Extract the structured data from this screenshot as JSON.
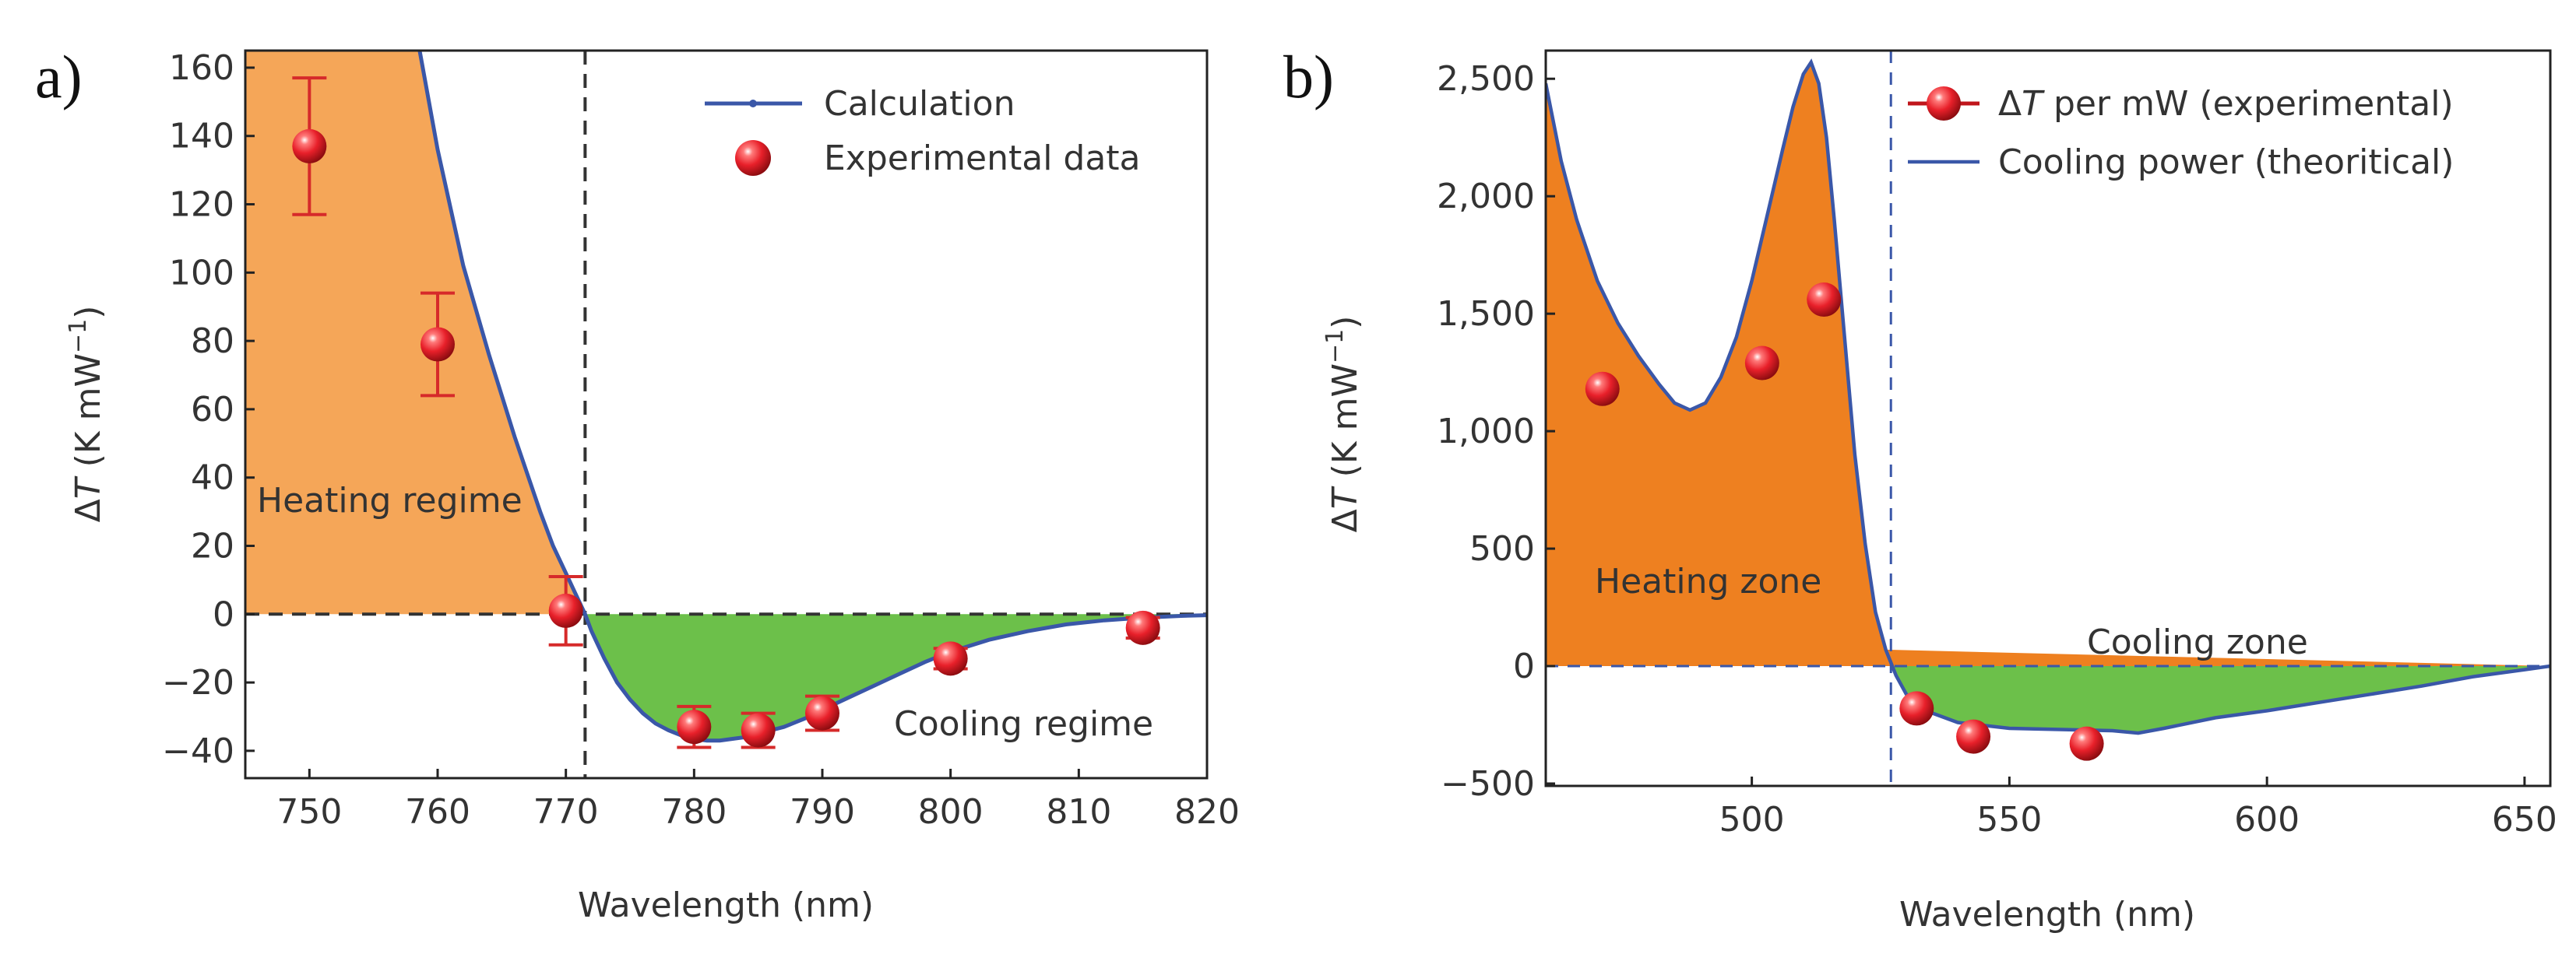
{
  "chart_data": [
    {
      "type": "line",
      "panel_label": "a)",
      "xlabel": "Wavelength (nm)",
      "ylabel_prefix": "Δ",
      "ylabel_var": "T",
      "ylabel_suffix": " (K mW",
      "ylabel_exp": "−1",
      "ylabel_close": ")",
      "xlim": [
        745,
        820
      ],
      "ylim": [
        -48,
        165
      ],
      "xticks": [
        750,
        760,
        770,
        780,
        790,
        800,
        810,
        820
      ],
      "yticks": [
        -40,
        -20,
        0,
        20,
        40,
        60,
        80,
        100,
        120,
        140,
        160
      ],
      "tick_labels_x": [
        "750",
        "760",
        "770",
        "780",
        "790",
        "800",
        "810",
        "820"
      ],
      "tick_labels_y": [
        "−40",
        "−20",
        "0",
        "20",
        "40",
        "60",
        "80",
        "100",
        "120",
        "140",
        "160"
      ],
      "legend_position": "top-right",
      "legend": [
        "Calculation",
        "Experimental data"
      ],
      "zero_crossing_x": 771.5,
      "annotations": [
        "Heating regime",
        "Cooling regime"
      ],
      "series": [
        {
          "name": "Calculation",
          "x": [
            758.6,
            760,
            762,
            764,
            766,
            768,
            769,
            770,
            771,
            771.5,
            772,
            773,
            774,
            775,
            776,
            777,
            778,
            779,
            780,
            781,
            782,
            783,
            784,
            785,
            786,
            787,
            788,
            789,
            790,
            792,
            794,
            796,
            798,
            800,
            803,
            806,
            809,
            812,
            815,
            818,
            820
          ],
          "y": [
            165,
            136,
            102,
            76,
            52,
            30,
            20,
            12,
            4,
            0,
            -5,
            -13,
            -20,
            -25,
            -29,
            -32,
            -34,
            -35.5,
            -36.5,
            -37,
            -37,
            -36.5,
            -36,
            -35,
            -34,
            -33,
            -31.5,
            -30,
            -28,
            -24.5,
            -21,
            -17.5,
            -14,
            -11,
            -7.5,
            -5,
            -3,
            -1.8,
            -1,
            -0.5,
            -0.3
          ]
        },
        {
          "name": "Experimental data",
          "x": [
            750,
            760,
            770,
            780,
            785,
            790,
            800,
            815
          ],
          "y": [
            137,
            79,
            1,
            -33,
            -34,
            -29,
            -13,
            -4
          ],
          "err": [
            20,
            15,
            10,
            6,
            5,
            5,
            3,
            3
          ]
        }
      ]
    },
    {
      "type": "line",
      "panel_label": "b)",
      "xlabel": "Wavelength (nm)",
      "ylabel_prefix": "Δ",
      "ylabel_var": "T",
      "ylabel_suffix": " (K mW",
      "ylabel_exp": "−1",
      "ylabel_close": ")",
      "xlim": [
        460,
        655
      ],
      "ylim": [
        -510,
        2620
      ],
      "xticks": [
        500,
        550,
        600,
        650
      ],
      "yticks": [
        -500,
        0,
        500,
        1000,
        1500,
        2000,
        2500
      ],
      "tick_labels_x": [
        "500",
        "550",
        "600",
        "650"
      ],
      "tick_labels_y": [
        "−500",
        "0",
        "500",
        "1,000",
        "1,500",
        "2,000",
        "2,500"
      ],
      "legend_position": "top-right",
      "legend_exp_prefix": "Δ",
      "legend_exp_var": "T",
      "legend_exp_rest": " per mW (experimental)",
      "legend_theory": "Cooling power (theoritical)",
      "zero_crossing_x": 527,
      "annotations": [
        "Heating zone",
        "Cooling zone"
      ],
      "series": [
        {
          "name": "Cooling power (theoritical)",
          "x": [
            460,
            463,
            466,
            470,
            474,
            478,
            482,
            485,
            488,
            491,
            494,
            497,
            500,
            503,
            506,
            508,
            510,
            511.5,
            513,
            514.5,
            516,
            518,
            520,
            522,
            524,
            526,
            528,
            530,
            535,
            540,
            550,
            560,
            570,
            575,
            580,
            590,
            600,
            610,
            620,
            630,
            640,
            650,
            655
          ],
          "y": [
            2480,
            2150,
            1900,
            1640,
            1460,
            1320,
            1200,
            1120,
            1090,
            1120,
            1230,
            1400,
            1640,
            1920,
            2200,
            2380,
            2520,
            2570,
            2480,
            2250,
            1900,
            1400,
            900,
            520,
            230,
            70,
            -40,
            -120,
            -200,
            -240,
            -265,
            -270,
            -275,
            -285,
            -265,
            -220,
            -190,
            -155,
            -120,
            -85,
            -45,
            -15,
            0
          ]
        },
        {
          "name": "ΔT per mW (experimental)",
          "x": [
            471,
            502,
            514,
            532,
            543,
            565
          ],
          "y": [
            1180,
            1290,
            1560,
            -180,
            -300,
            -330
          ]
        }
      ]
    }
  ]
}
